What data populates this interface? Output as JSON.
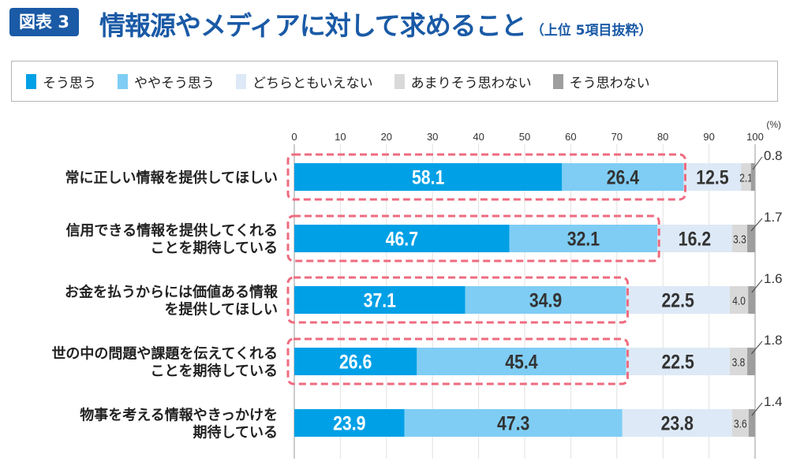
{
  "header": {
    "badge": "図表 3",
    "title": "情報源やメディアに対して求めること",
    "subtitle": "（上位 5項目抜粋）",
    "title_color": "#1a5aa6"
  },
  "chart_data": {
    "type": "stacked-bar-horizontal",
    "unit_label": "(%)",
    "xlim": [
      0,
      100
    ],
    "ticks": [
      0,
      10,
      20,
      30,
      40,
      50,
      60,
      70,
      80,
      90,
      100
    ],
    "grid": true,
    "legend_position": "top",
    "categories": [
      [
        "常に正しい情報を提供してほしい"
      ],
      [
        "信用できる情報を提供してくれる",
        "ことを期待している"
      ],
      [
        "お金を払うからには価値ある情報",
        "を提供してほしい"
      ],
      [
        "世の中の問題や課題を伝えてくれる",
        "ことを期待している"
      ],
      [
        "物事を考える情報やきっかけを",
        "期待している"
      ]
    ],
    "series": [
      {
        "name": "そう思う",
        "color": "#00a0e6",
        "values": [
          58.1,
          46.7,
          37.1,
          26.6,
          23.9
        ]
      },
      {
        "name": "ややそう思う",
        "color": "#7fcdf4",
        "values": [
          26.4,
          32.1,
          34.9,
          45.4,
          47.3
        ]
      },
      {
        "name": "どちらともいえない",
        "color": "#dde9f6",
        "values": [
          12.5,
          16.2,
          22.5,
          22.5,
          23.8
        ]
      },
      {
        "name": "あまりそう思わない",
        "color": "#d9d9d9",
        "values": [
          2.1,
          3.3,
          4.0,
          3.8,
          3.6
        ]
      },
      {
        "name": "そう思わない",
        "color": "#9e9e9e",
        "values": [
          0.8,
          1.7,
          1.6,
          1.8,
          1.4
        ]
      }
    ],
    "highlighted_rows": [
      0,
      1,
      2,
      3
    ],
    "highlight_color": "#ee6b7f"
  }
}
